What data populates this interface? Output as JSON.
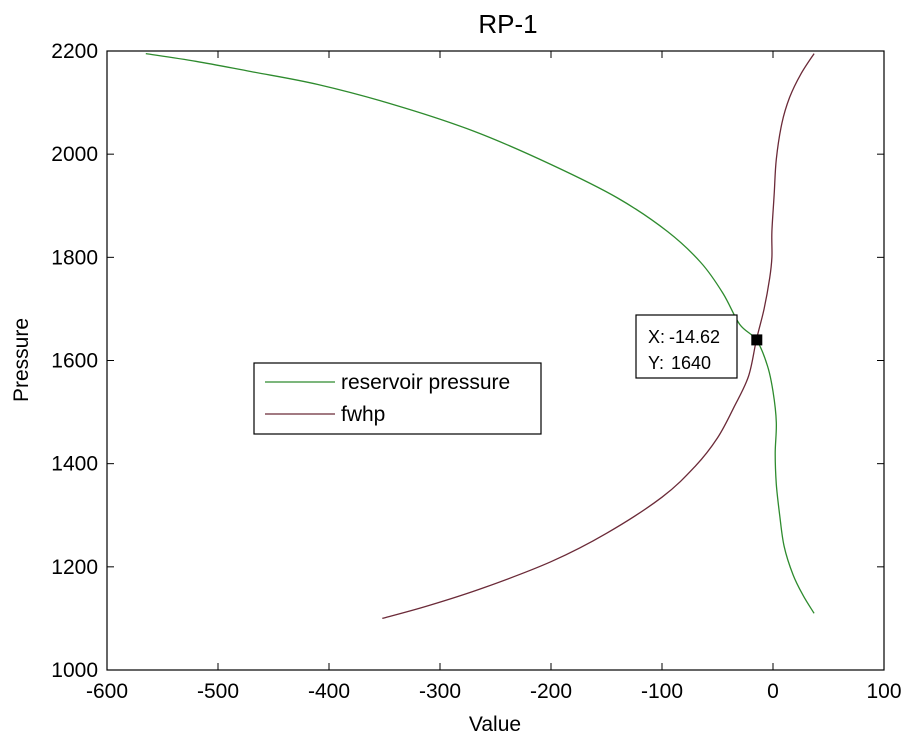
{
  "chart_data": {
    "type": "line",
    "title": "RP-1",
    "xlabel": "Value",
    "ylabel": "Pressure",
    "xlim": [
      -600,
      100
    ],
    "ylim": [
      1000,
      2200
    ],
    "xticks": [
      -600,
      -500,
      -400,
      -300,
      -200,
      -100,
      0,
      100
    ],
    "yticks": [
      1000,
      1200,
      1400,
      1600,
      1800,
      2000,
      2200
    ],
    "grid": false,
    "legend_position": "center-left",
    "series": [
      {
        "name": "reservoir pressure",
        "color": "#2e8b2e",
        "points": [
          [
            -565,
            2195
          ],
          [
            -520,
            2180
          ],
          [
            -470,
            2160
          ],
          [
            -410,
            2135
          ],
          [
            -340,
            2095
          ],
          [
            -270,
            2045
          ],
          [
            -200,
            1980
          ],
          [
            -140,
            1915
          ],
          [
            -95,
            1850
          ],
          [
            -65,
            1790
          ],
          [
            -45,
            1730
          ],
          [
            -30,
            1670
          ],
          [
            -15,
            1640
          ],
          [
            -5,
            1590
          ],
          [
            0,
            1540
          ],
          [
            3,
            1480
          ],
          [
            2,
            1420
          ],
          [
            3,
            1360
          ],
          [
            6,
            1300
          ],
          [
            10,
            1240
          ],
          [
            18,
            1185
          ],
          [
            27,
            1145
          ],
          [
            37,
            1110
          ]
        ]
      },
      {
        "name": "fwhp",
        "color": "#6b2a38",
        "points": [
          [
            -352,
            1100
          ],
          [
            -310,
            1125
          ],
          [
            -260,
            1160
          ],
          [
            -200,
            1210
          ],
          [
            -150,
            1265
          ],
          [
            -100,
            1335
          ],
          [
            -70,
            1395
          ],
          [
            -50,
            1450
          ],
          [
            -35,
            1510
          ],
          [
            -22,
            1570
          ],
          [
            -15,
            1640
          ],
          [
            -8,
            1700
          ],
          [
            -3,
            1760
          ],
          [
            -1,
            1800
          ],
          [
            -1,
            1850
          ],
          [
            1,
            1920
          ],
          [
            3,
            1990
          ],
          [
            8,
            2060
          ],
          [
            15,
            2110
          ],
          [
            25,
            2155
          ],
          [
            37,
            2195
          ]
        ]
      }
    ],
    "annotation": {
      "x_label": "X:",
      "x_value": "-14.62",
      "y_label": "Y:",
      "y_value": "1640",
      "point": [
        -14.62,
        1640
      ]
    }
  }
}
